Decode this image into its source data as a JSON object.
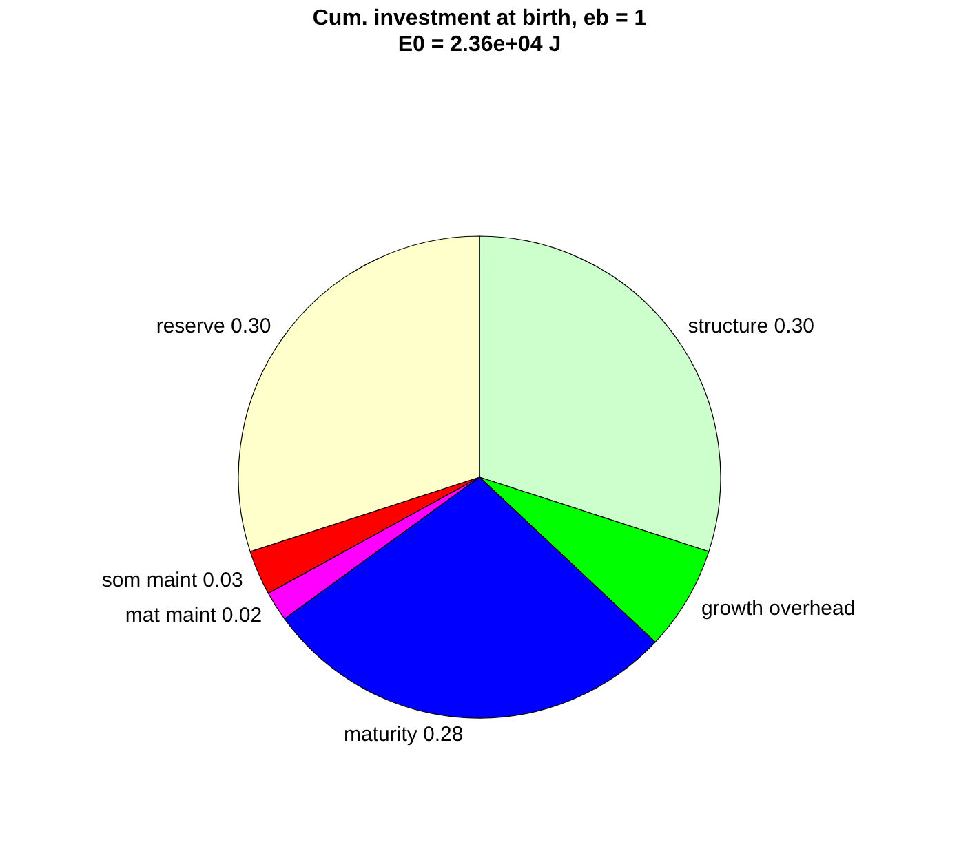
{
  "chart_data": {
    "type": "pie",
    "title": "Cum. investment at birth, eb = 1",
    "subtitle": "E0 = 2.36e+04 J",
    "categories": [
      "structure",
      "growth overhead",
      "maturity",
      "mat maint",
      "som maint",
      "reserve"
    ],
    "values": [
      0.3,
      0.07,
      0.28,
      0.02,
      0.03,
      0.3
    ],
    "value_labels": [
      "0.30",
      null,
      "0.28",
      "0.02",
      "0.03",
      "0.30"
    ],
    "colors": [
      "#ccffcc",
      "#00ff00",
      "#0000ff",
      "#ff00ff",
      "#ff0000",
      "#ffffcc"
    ],
    "legend": false
  }
}
